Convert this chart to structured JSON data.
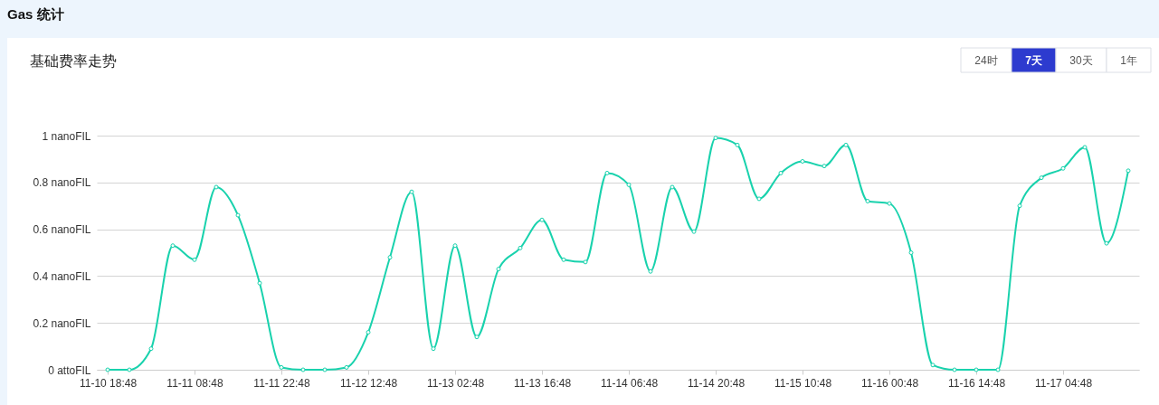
{
  "chart_data": {
    "type": "line",
    "title": "Gas 统计",
    "subtitle": "基础费率走势",
    "annotations": [
      "24时",
      "7天",
      "30天",
      "1年"
    ],
    "categories": [
      "11-10 18:48",
      null,
      null,
      null,
      "11-11 08:48",
      null,
      null,
      null,
      "11-11 22:48",
      null,
      null,
      null,
      "11-12 12:48",
      null,
      null,
      null,
      "11-13 02:48",
      null,
      null,
      null,
      "11-13 16:48",
      null,
      null,
      null,
      "11-14 06:48",
      null,
      null,
      null,
      "11-14 20:48",
      null,
      null,
      null,
      "11-15 10:48",
      null,
      null,
      null,
      "11-16 00:48",
      null,
      null,
      null,
      "11-16 14:48",
      null,
      null,
      null,
      "11-17 04:48",
      null,
      null,
      null
    ],
    "series": [
      {
        "color": "#19d2ad",
        "values": [
          0,
          0,
          0.09,
          0.53,
          0.47,
          0.78,
          0.66,
          0.37,
          0.01,
          0,
          0,
          0.01,
          0.16,
          0.48,
          0.76,
          0.09,
          0.53,
          0.14,
          0.43,
          0.52,
          0.64,
          0.47,
          0.46,
          0.84,
          0.79,
          0.42,
          0.78,
          0.59,
          0.99,
          0.96,
          0.73,
          0.84,
          0.89,
          0.87,
          0.96,
          0.72,
          0.71,
          0.5,
          0.02,
          0,
          0,
          0,
          0.7,
          0.82,
          0.86,
          0.95,
          0.54,
          0.85
        ]
      }
    ],
    "ylim": [
      0,
      1
    ],
    "yticks": [
      {
        "value": 0,
        "label": "0 attoFIL"
      },
      {
        "value": 0.2,
        "label": "0.2 nanoFIL"
      },
      {
        "value": 0.4,
        "label": "0.4 nanoFIL"
      },
      {
        "value": 0.6,
        "label": "0.6 nanoFIL"
      },
      {
        "value": 0.8,
        "label": "0.8 nanoFIL"
      },
      {
        "value": 1,
        "label": "1 nanoFIL"
      }
    ],
    "grid": "y",
    "marker": "circle",
    "line_style": "solid"
  }
}
